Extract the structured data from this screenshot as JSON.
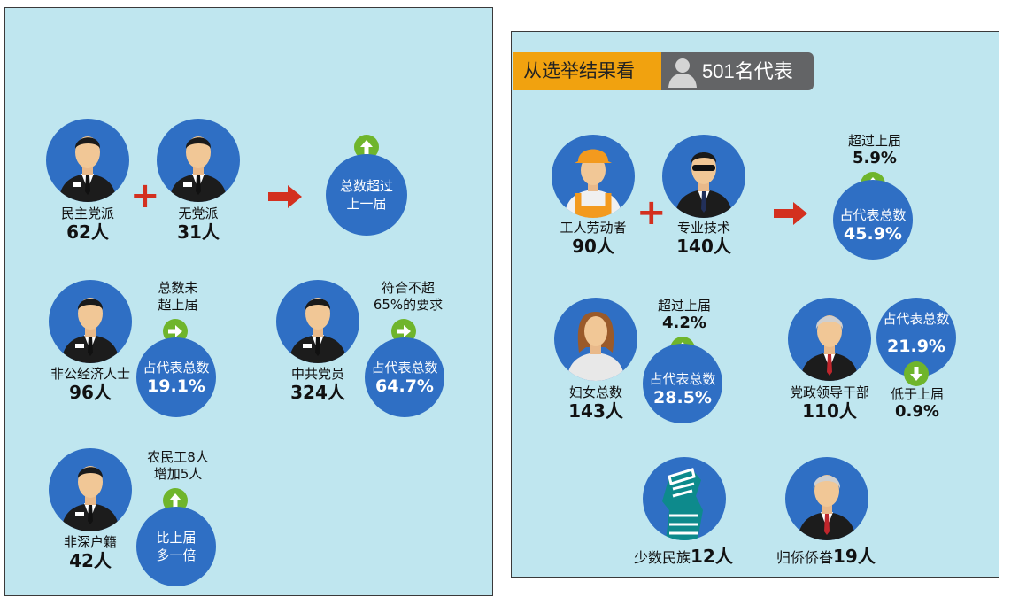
{
  "left": {
    "democratic_parties": {
      "label": "民主党派",
      "count": "62人"
    },
    "no_party": {
      "label": "无党派",
      "count": "31人"
    },
    "total_result": {
      "line1": "总数超过",
      "line2": "上一届"
    },
    "non_public": {
      "label": "非公经济人士",
      "count": "96人",
      "note1": "总数未",
      "note2": "超上届",
      "bubble_title": "占代表总数",
      "bubble_value": "19.1%"
    },
    "ccp": {
      "label": "中共党员",
      "count": "324人",
      "note1": "符合不超",
      "note2": "65%的要求",
      "bubble_title": "占代表总数",
      "bubble_value": "64.7%"
    },
    "non_sz": {
      "label": "非深户籍",
      "count": "42人",
      "note1": "农民工8人",
      "note2": "增加5人",
      "bubble_line1": "比上届",
      "bubble_line2": "多一倍"
    }
  },
  "right": {
    "header": {
      "title": "从选举结果看",
      "count": "501名代表"
    },
    "workers": {
      "label": "工人劳动者",
      "count": "90人"
    },
    "professionals": {
      "label": "专业技术",
      "count": "140人"
    },
    "combined": {
      "note1": "超过上届",
      "note_value": "5.9%",
      "bubble_title": "占代表总数",
      "bubble_value": "45.9%"
    },
    "women": {
      "label": "妇女总数",
      "count": "143人",
      "note1": "超过上届",
      "note_value": "4.2%",
      "bubble_title": "占代表总数",
      "bubble_value": "28.5%"
    },
    "officials": {
      "label": "党政领导干部",
      "count": "110人",
      "bubble_title": "占代表总数",
      "bubble_value": "21.9%",
      "note1": "低于上届",
      "note_value": "0.9%"
    },
    "minority": {
      "label": "少数民族",
      "count": "12人"
    },
    "overseas": {
      "label": "归侨侨眷",
      "count": "19人"
    }
  },
  "colors": {
    "panel_bg": "#bfe6ef",
    "circle_blue": "#2f6fc4",
    "badge_green": "#6fb52c",
    "accent_red": "#d3301f",
    "header_orange": "#f1a20f",
    "header_grey": "#636466"
  },
  "icons": [
    "businessman-avatar-icon",
    "worker-avatar-icon",
    "sunglasses-man-avatar-icon",
    "woman-avatar-icon",
    "elderly-man-avatar-icon",
    "minority-figure-icon",
    "person-silhouette-icon",
    "plus-icon",
    "right-arrow-icon",
    "green-up-arrow-icon",
    "green-right-arrow-icon",
    "green-down-arrow-icon"
  ]
}
